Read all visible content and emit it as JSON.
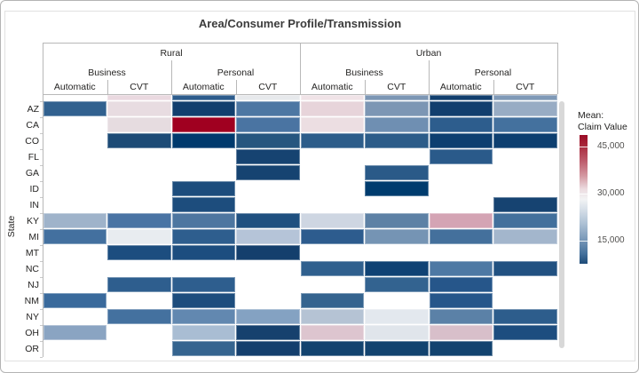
{
  "title": "Area/Consumer Profile/Transmission",
  "y_axis": {
    "label": "State"
  },
  "legend": {
    "title_line1": "Mean:",
    "title_line2": "Claim Value",
    "ticks": [
      "45,000",
      "30,000",
      "15,000"
    ]
  },
  "chart_data": {
    "type": "heatmap",
    "title": "Area/Consumer Profile/Transmission",
    "column_hierarchy": {
      "level1": [
        {
          "label": "Rural",
          "span": 4
        },
        {
          "label": "Urban",
          "span": 4
        }
      ],
      "level2": [
        {
          "label": "Business",
          "span": 2
        },
        {
          "label": "Personal",
          "span": 2
        },
        {
          "label": "Business",
          "span": 2
        },
        {
          "label": "Personal",
          "span": 2
        }
      ],
      "level3": [
        "Automatic",
        "CVT",
        "Automatic",
        "CVT",
        "Automatic",
        "CVT",
        "Automatic",
        "CVT"
      ]
    },
    "columns": [
      {
        "area": "Rural",
        "profile": "Business",
        "transmission": "Automatic"
      },
      {
        "area": "Rural",
        "profile": "Business",
        "transmission": "CVT"
      },
      {
        "area": "Rural",
        "profile": "Personal",
        "transmission": "Automatic"
      },
      {
        "area": "Rural",
        "profile": "Personal",
        "transmission": "CVT"
      },
      {
        "area": "Urban",
        "profile": "Business",
        "transmission": "Automatic"
      },
      {
        "area": "Urban",
        "profile": "Business",
        "transmission": "CVT"
      },
      {
        "area": "Urban",
        "profile": "Personal",
        "transmission": "Automatic"
      },
      {
        "area": "Urban",
        "profile": "Personal",
        "transmission": "CVT"
      }
    ],
    "rows": [
      "AZ",
      "CA",
      "CO",
      "FL",
      "GA",
      "ID",
      "IN",
      "KY",
      "MI",
      "MT",
      "NC",
      "NJ",
      "NM",
      "NY",
      "OH",
      "OR"
    ],
    "cell_colors": [
      [
        "#31618f",
        "#e8dce1",
        "#123f6e",
        "#4d77a3",
        "#e7d4da",
        "#7c96b4",
        "#123f6e",
        "#98acc4"
      ],
      [
        null,
        "#e6dce0",
        "#a00020",
        "#4a74a2",
        "#ecdee2",
        "#6f8fb2",
        "#2d5d8d",
        "#44719e"
      ],
      [
        null,
        "#1d4b76",
        "#003a6d",
        "#26567f",
        "#2d5d8a",
        "#2c5c89",
        "#0d3f70",
        "#0d3f70"
      ],
      [
        null,
        null,
        null,
        "#164371",
        null,
        null,
        "#2a5a8a",
        null
      ],
      [
        null,
        null,
        null,
        "#164371",
        null,
        "#2a5a88",
        null,
        null
      ],
      [
        null,
        null,
        "#1d4d7d",
        null,
        null,
        "#003c6e",
        null,
        null
      ],
      [
        null,
        null,
        "#1d4d7d",
        null,
        null,
        null,
        null,
        "#164371"
      ],
      [
        "#9fb3ca",
        "#4a74a4",
        "#4d76a0",
        "#1f5080",
        "#ced6e2",
        "#5d81a5",
        "#d4a4b4",
        "#42709c"
      ],
      [
        "#43709f",
        "#e8ecf0",
        "#2e5e8e",
        "#b5c4d8",
        "#2d5c8e",
        "#7594b4",
        "#44709c",
        "#a3b6cc"
      ],
      [
        null,
        "#1c4d7f",
        "#1c4d7f",
        "#143f6d",
        null,
        null,
        null,
        null
      ],
      [
        null,
        null,
        null,
        null,
        "#30608e",
        "#0f4274",
        "#4e79a4",
        "#215181"
      ],
      [
        null,
        "#2e5e8e",
        "#2e5e8e",
        null,
        null,
        "#336390",
        "#26568a",
        null
      ],
      [
        "#3a6a9c",
        null,
        "#1d4d7d",
        null,
        "#35648f",
        null,
        "#26568a",
        null
      ],
      [
        null,
        "#44719f",
        "#6288b0",
        "#84a2c2",
        "#b5c3d4",
        "#e3e8ee",
        "#5b81a7",
        "#2d5d8c"
      ],
      [
        "#8aa4c2",
        null,
        "#a9bdd3",
        "#16416e",
        "#ddc5cf",
        "#e0e5eb",
        "#d8bfca",
        "#1d4d7f"
      ],
      [
        null,
        null,
        "#35648f",
        "#143f6d",
        "#12436f",
        "#12436f",
        "#12436f",
        null
      ]
    ],
    "values_approx": [
      [
        13500,
        32000,
        9000,
        16000,
        33000,
        20000,
        9000,
        22500
      ],
      [
        null,
        32000,
        47000,
        15500,
        32500,
        19000,
        13000,
        15000
      ],
      [
        null,
        11000,
        8000,
        12500,
        13000,
        13000,
        8500,
        8500
      ],
      [
        null,
        null,
        null,
        9500,
        null,
        null,
        12500,
        null
      ],
      [
        null,
        null,
        null,
        9500,
        null,
        12500,
        null,
        null
      ],
      [
        null,
        null,
        11000,
        null,
        null,
        8000,
        null,
        null
      ],
      [
        null,
        null,
        11000,
        null,
        null,
        null,
        null,
        9500
      ],
      [
        22500,
        15500,
        16000,
        10500,
        26500,
        17500,
        37000,
        15000
      ],
      [
        15000,
        29000,
        13000,
        24500,
        13000,
        20000,
        15000,
        22500
      ],
      [
        null,
        11000,
        11000,
        9000,
        null,
        null,
        null,
        null
      ],
      [
        null,
        null,
        null,
        null,
        13500,
        8500,
        16000,
        10500
      ],
      [
        null,
        13000,
        13000,
        null,
        null,
        14000,
        12000,
        null
      ],
      [
        14000,
        null,
        11000,
        null,
        14500,
        null,
        12000,
        null
      ],
      [
        null,
        15000,
        18500,
        21500,
        24500,
        29000,
        17500,
        13000
      ],
      [
        21500,
        null,
        24000,
        9000,
        34000,
        29000,
        34000,
        11000
      ],
      [
        null,
        null,
        14500,
        9000,
        8500,
        8500,
        8500,
        null
      ]
    ],
    "partial_top_row_colors": [
      null,
      "#ead9e0",
      "#2d5c8c",
      "#e7e9ec",
      "#f0e3e7",
      "#7c96b4",
      "#123f6e",
      "#7f99b7"
    ],
    "color_scale": {
      "max_color": "#9a0c27",
      "mid_color": "#f2f3f4",
      "min_color": "#1d4b78",
      "legend_tick_values": [
        45000,
        30000,
        15000
      ]
    },
    "legend_position": "right"
  }
}
